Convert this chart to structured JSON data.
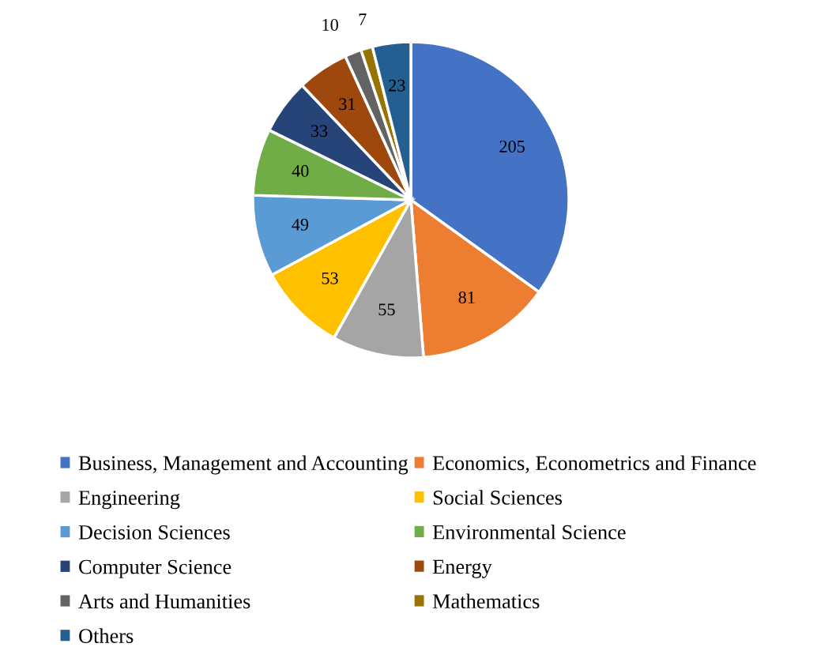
{
  "chart_data": {
    "type": "pie",
    "categories": [
      "Business, Management and Accounting",
      "Economics, Econometrics and Finance",
      "Engineering",
      "Social Sciences",
      "Decision Sciences",
      "Environmental Science",
      "Computer Science",
      "Energy",
      "Arts and Humanities",
      "Mathematics",
      "Others"
    ],
    "values": [
      205,
      81,
      55,
      53,
      49,
      40,
      33,
      31,
      10,
      7,
      23
    ],
    "colors": [
      "#4472c4",
      "#ed7d31",
      "#a5a5a5",
      "#ffc000",
      "#5b9bd5",
      "#70ad47",
      "#264478",
      "#9e480e",
      "#636363",
      "#997300",
      "#255e91"
    ],
    "data_labels": true,
    "legend": "bottom"
  }
}
